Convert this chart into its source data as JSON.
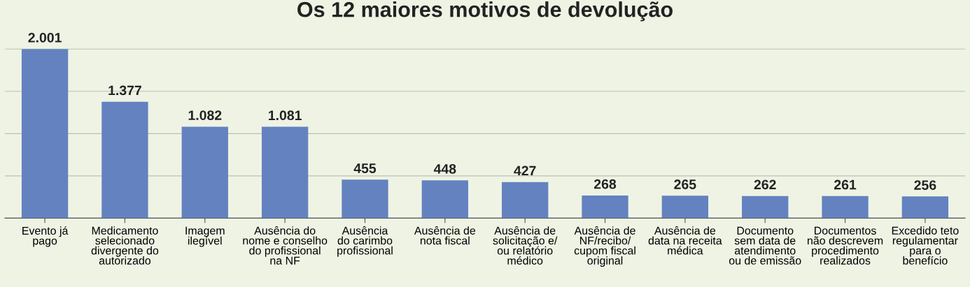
{
  "chart_data": {
    "type": "bar",
    "title": "Os 12 maiores motivos de devolução",
    "categories": [
      "Evento já\npago",
      "Medicamento\nselecionado\ndivergente do\nautorizado",
      "Imagem\nilegível",
      "Ausência do\nnome e conselho\ndo profissional\nna NF",
      "Ausência\ndo carimbo\nprofissional",
      "Ausência de\nnota fiscal",
      "Ausência de\nsolicitação e/\nou relatório\nmédico",
      "Ausência de\nNF/recibo/\ncupom fiscal\noriginal",
      "Ausência de\ndata na receita\nmédica",
      "Documento\nsem data de\natendimento\nou de emissão",
      "Documentos\nnão descrevem\nprocedimento\nrealizados",
      "Excedido teto\nregulamentar\npara o\nbenefício"
    ],
    "values": [
      2001,
      1377,
      1082,
      1081,
      455,
      448,
      427,
      268,
      265,
      262,
      261,
      256
    ],
    "value_labels": [
      "2.001",
      "1.377",
      "1.082",
      "1.081",
      "455",
      "448",
      "427",
      "268",
      "265",
      "262",
      "261",
      "256"
    ],
    "color": "#6482c0",
    "yticks": [
      {
        "value": 0,
        "label": null
      },
      {
        "value": 500,
        "label": null
      },
      {
        "value": 1000,
        "label": null
      },
      {
        "value": 1500,
        "label": null
      },
      {
        "value": 2000,
        "label": null
      }
    ],
    "grid": "y",
    "tick_labels": "x",
    "legend": false
  }
}
